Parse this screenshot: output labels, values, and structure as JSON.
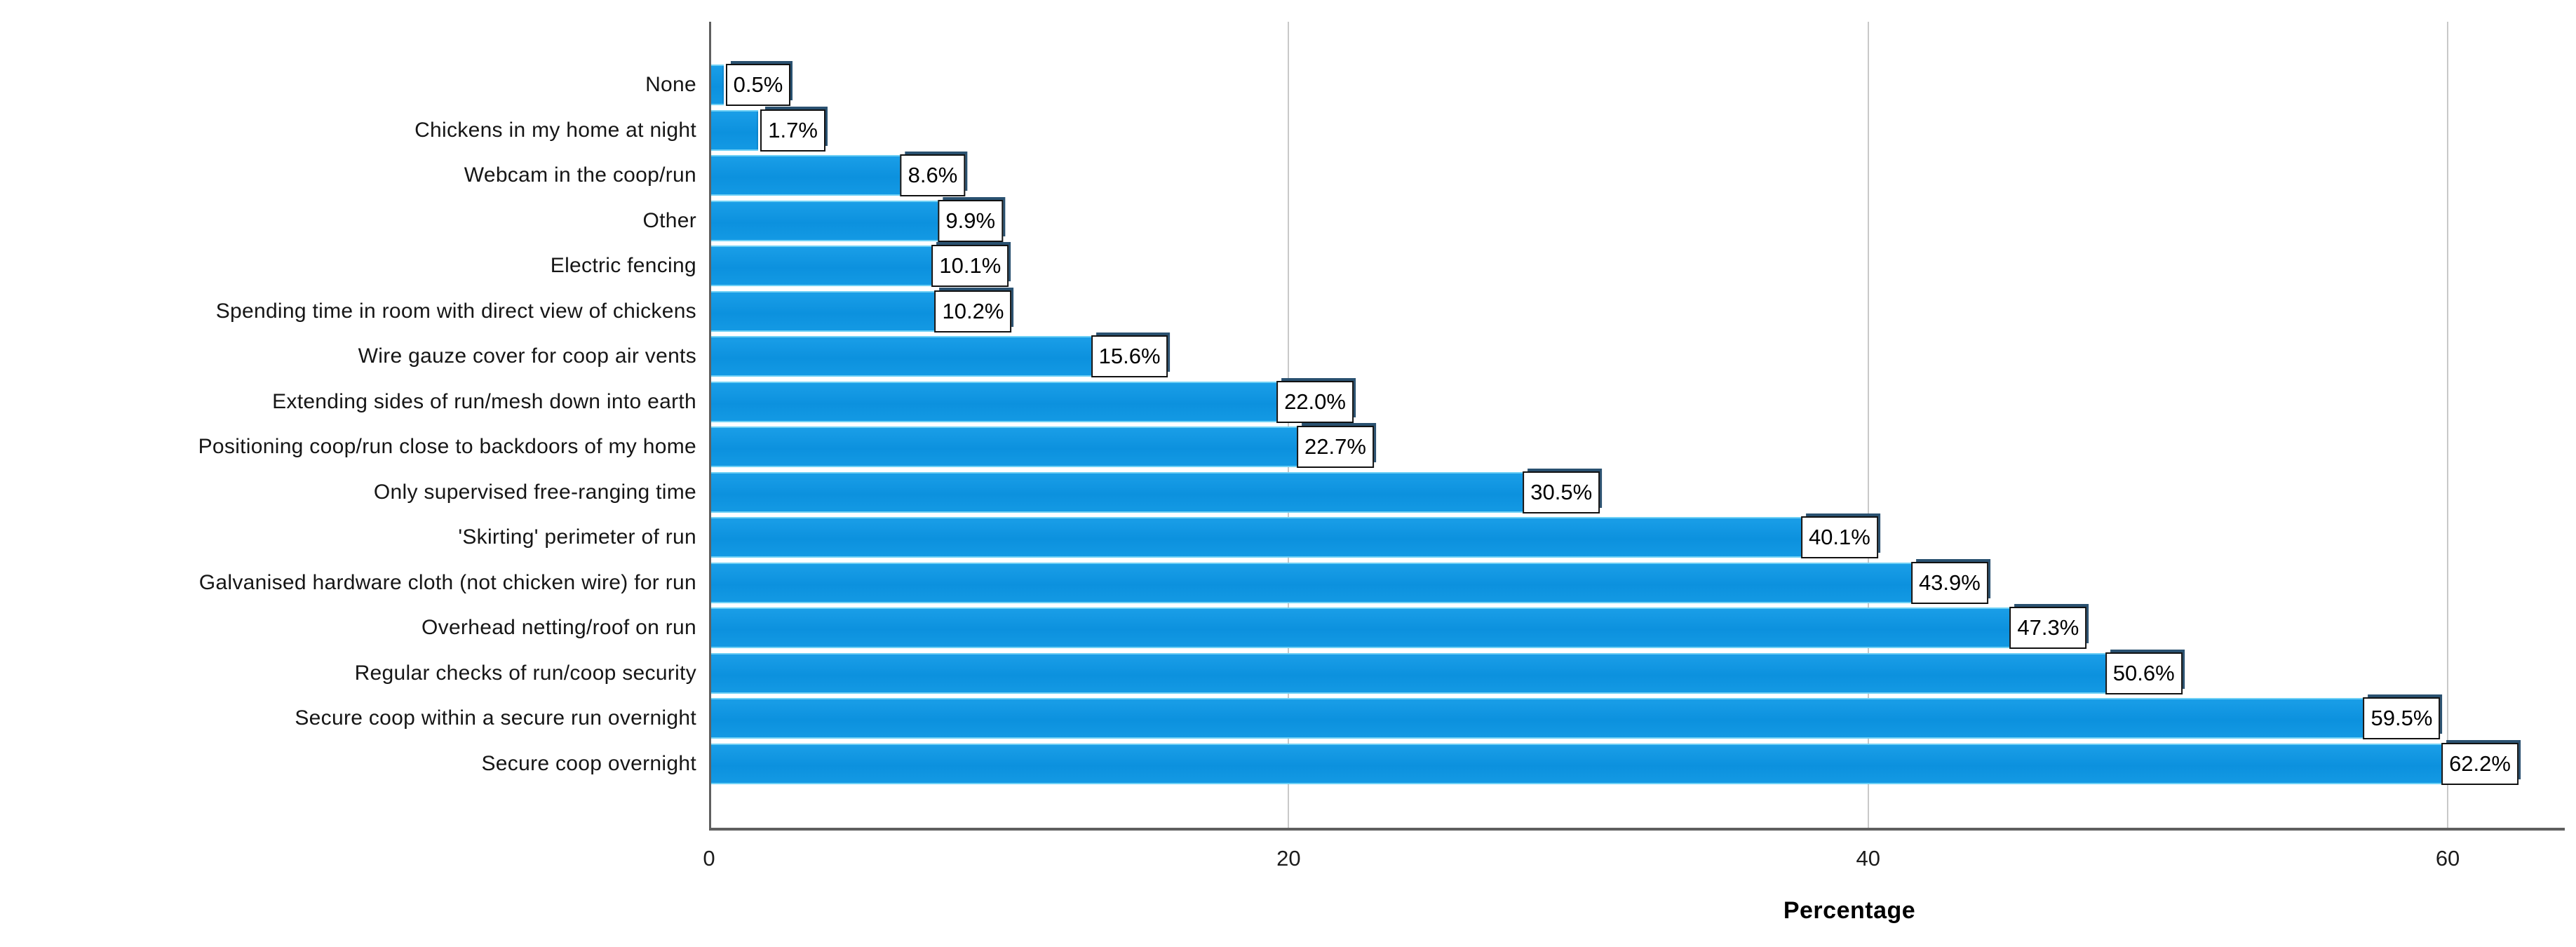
{
  "chart_data": {
    "type": "bar",
    "orientation": "horizontal",
    "title": "",
    "xlabel": "Percentage",
    "ylabel": "",
    "categories": [
      "None",
      "Chickens in my home at night",
      "Webcam in the coop/run",
      "Other",
      "Electric fencing",
      "Spending time in room with direct view of chickens",
      "Wire gauze cover for coop air vents",
      "Extending sides of run/mesh down into earth",
      "Positioning coop/run close to backdoors of my home",
      "Only supervised free-ranging time",
      "'Skirting' perimeter of run",
      "Galvanised hardware cloth (not chicken wire) for run",
      "Overhead netting/roof on run",
      "Regular checks of run/coop security",
      "Secure coop within a secure run overnight",
      "Secure coop overnight"
    ],
    "values": [
      0.5,
      1.7,
      8.6,
      9.9,
      10.1,
      10.2,
      15.6,
      22.0,
      22.7,
      30.5,
      40.1,
      43.9,
      47.3,
      50.6,
      59.5,
      62.2
    ],
    "value_labels": [
      "0.5%",
      "1.7%",
      "8.6%",
      "9.9%",
      "10.1%",
      "10.2%",
      "15.6%",
      "22.0%",
      "22.7%",
      "30.5%",
      "40.1%",
      "43.9%",
      "47.3%",
      "50.6%",
      "59.5%",
      "62.2%"
    ],
    "x_ticks": [
      0,
      20,
      40,
      60
    ],
    "x_tick_labels": [
      "0",
      "20",
      "40",
      "60"
    ],
    "xlim": [
      0,
      64.04
    ],
    "grid": true,
    "legend": "none",
    "colors": {
      "bar": "#0d93e0",
      "bar_edge_highlight": "#6fd0f5",
      "axis_line": "#5f5f5f",
      "gridline": "#c9c9c9",
      "label_box_bg": "#ffffff",
      "label_box_border": "#111111",
      "label_box_shadow": "#2a5170",
      "text": "#161616"
    }
  }
}
